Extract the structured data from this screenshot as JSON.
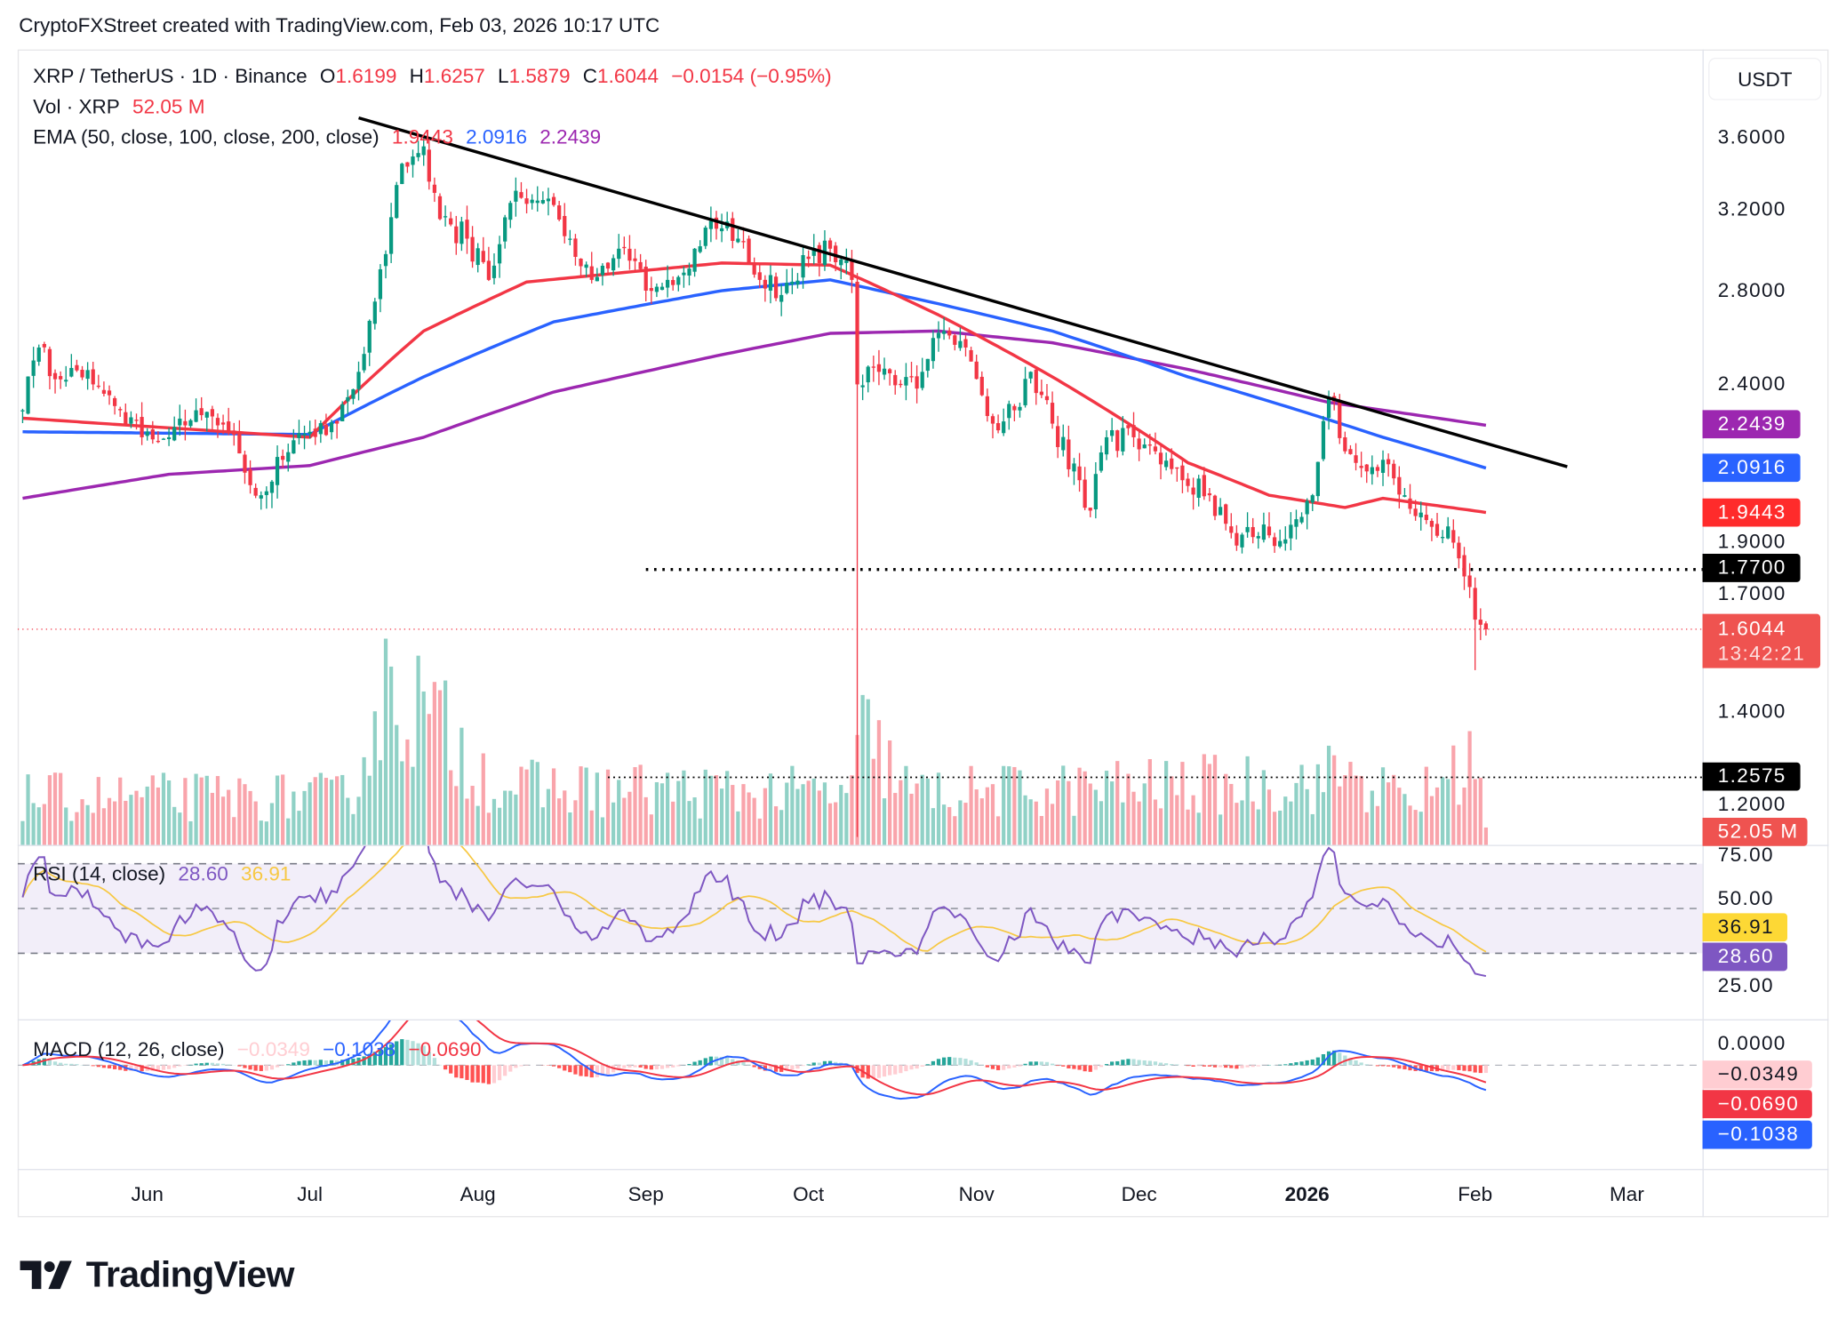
{
  "header": {
    "title": "CryptoFXStreet created with TradingView.com, Feb 03, 2026 10:17 UTC"
  },
  "legend": {
    "symbol": "XRP / TetherUS · 1D · Binance",
    "o_label": "O",
    "o": "1.6199",
    "h_label": "H",
    "h": "1.6257",
    "l_label": "L",
    "l": "1.5879",
    "c_label": "C",
    "c": "1.6044",
    "change": "−0.0154 (−0.95%)",
    "vol_label": "Vol · XRP",
    "vol": "52.05 M",
    "ema_label": "EMA (50, close, 100, close, 200, close)",
    "ema50": "1.9443",
    "ema100": "2.0916",
    "ema200": "2.2439",
    "rsi_label": "RSI (14, close)",
    "rsi": "28.60",
    "rsi_ma": "36.91",
    "macd_label": "MACD (12, 26, close)",
    "macd_hist": "−0.0349",
    "macd_line": "−0.1038",
    "macd_signal": "−0.0690"
  },
  "price_axis": {
    "currency": "USDT",
    "ticks": [
      "3.6000",
      "3.2000",
      "2.8000",
      "2.4000",
      "1.9000",
      "1.7000",
      "1.4000",
      "1.2000"
    ],
    "tick_values": [
      3.6,
      3.2,
      2.8,
      2.4,
      1.9,
      1.7,
      1.4,
      1.2
    ],
    "badges": {
      "ema200": "2.2439",
      "ema100": "2.0916",
      "ema50": "1.9443",
      "support": "1.7700",
      "last": "1.6044",
      "countdown": "13:42:21",
      "low_level": "1.2575",
      "volume": "52.05 M"
    }
  },
  "rsi_axis": {
    "ticks": [
      "75.00",
      "50.00",
      "25.00"
    ],
    "badges": {
      "ma": "36.91",
      "rsi": "28.60"
    }
  },
  "macd_axis": {
    "ticks": [
      "0.0000"
    ],
    "badges": {
      "hist": "−0.0349",
      "signal": "−0.0690",
      "macd": "−0.1038"
    }
  },
  "x_axis": {
    "labels": [
      {
        "t": "Jun",
        "d": "2025-06-01"
      },
      {
        "t": "Jul",
        "d": "2025-07-01"
      },
      {
        "t": "Aug",
        "d": "2025-08-01"
      },
      {
        "t": "Sep",
        "d": "2025-09-01"
      },
      {
        "t": "Oct",
        "d": "2025-10-01"
      },
      {
        "t": "Nov",
        "d": "2025-11-01"
      },
      {
        "t": "Dec",
        "d": "2025-12-01"
      },
      {
        "t": "2026",
        "d": "2026-01-01",
        "bold": true
      },
      {
        "t": "Feb",
        "d": "2026-02-01"
      },
      {
        "t": "Mar",
        "d": "2026-03-01"
      }
    ]
  },
  "footer": {
    "brand": "TradingView"
  },
  "colors": {
    "up": "#089981",
    "down": "#f23645",
    "ema50": "#f23645",
    "ema100": "#2962ff",
    "ema200": "#9c27b0",
    "rsi": "#7e57c2",
    "rsi_ma": "#f7c843"
  },
  "chart_data": {
    "type": "candlestick",
    "title": "XRP / TetherUS · 1D · Binance",
    "scale": "log",
    "ylim": [
      1.1,
      3.8
    ],
    "close_keypoints": [
      [
        "2025-05-09",
        2.3
      ],
      [
        "2025-05-12",
        2.55
      ],
      [
        "2025-05-16",
        2.42
      ],
      [
        "2025-05-22",
        2.4
      ],
      [
        "2025-05-27",
        2.3
      ],
      [
        "2025-05-31",
        2.2
      ],
      [
        "2025-06-05",
        2.2
      ],
      [
        "2025-06-10",
        2.3
      ],
      [
        "2025-06-16",
        2.22
      ],
      [
        "2025-06-22",
        2.0
      ],
      [
        "2025-06-26",
        2.12
      ],
      [
        "2025-07-01",
        2.22
      ],
      [
        "2025-07-06",
        2.25
      ],
      [
        "2025-07-10",
        2.45
      ],
      [
        "2025-07-14",
        2.9
      ],
      [
        "2025-07-18",
        3.45
      ],
      [
        "2025-07-22",
        3.55
      ],
      [
        "2025-07-25",
        3.15
      ],
      [
        "2025-07-30",
        3.05
      ],
      [
        "2025-08-03",
        2.85
      ],
      [
        "2025-08-08",
        3.3
      ],
      [
        "2025-08-13",
        3.25
      ],
      [
        "2025-08-18",
        3.05
      ],
      [
        "2025-08-22",
        2.85
      ],
      [
        "2025-08-27",
        3.0
      ],
      [
        "2025-09-01",
        2.8
      ],
      [
        "2025-09-05",
        2.85
      ],
      [
        "2025-09-10",
        3.0
      ],
      [
        "2025-09-14",
        3.1
      ],
      [
        "2025-09-18",
        3.05
      ],
      [
        "2025-09-22",
        2.85
      ],
      [
        "2025-09-26",
        2.78
      ],
      [
        "2025-10-01",
        2.95
      ],
      [
        "2025-10-05",
        3.0
      ],
      [
        "2025-10-09",
        2.85
      ],
      [
        "2025-10-10",
        2.4
      ],
      [
        "2025-10-14",
        2.45
      ],
      [
        "2025-10-18",
        2.4
      ],
      [
        "2025-10-22",
        2.45
      ],
      [
        "2025-10-26",
        2.62
      ],
      [
        "2025-10-30",
        2.55
      ],
      [
        "2025-11-04",
        2.25
      ],
      [
        "2025-11-08",
        2.3
      ],
      [
        "2025-11-11",
        2.45
      ],
      [
        "2025-11-15",
        2.25
      ],
      [
        "2025-11-20",
        2.05
      ],
      [
        "2025-11-22",
        1.95
      ],
      [
        "2025-11-25",
        2.2
      ],
      [
        "2025-11-30",
        2.2
      ],
      [
        "2025-12-04",
        2.15
      ],
      [
        "2025-12-09",
        2.05
      ],
      [
        "2025-12-14",
        2.0
      ],
      [
        "2025-12-18",
        1.88
      ],
      [
        "2025-12-23",
        1.87
      ],
      [
        "2025-12-28",
        1.86
      ],
      [
        "2026-01-02",
        2.0
      ],
      [
        "2026-01-05",
        2.35
      ],
      [
        "2026-01-08",
        2.15
      ],
      [
        "2026-01-12",
        2.08
      ],
      [
        "2026-01-15",
        2.12
      ],
      [
        "2026-01-19",
        2.0
      ],
      [
        "2026-01-23",
        1.92
      ],
      [
        "2026-01-27",
        1.9
      ],
      [
        "2026-01-30",
        1.75
      ],
      [
        "2026-02-01",
        1.63
      ],
      [
        "2026-02-03",
        1.6044
      ]
    ],
    "special_lows": [
      [
        "2025-10-10",
        1.14
      ],
      [
        "2026-02-01",
        1.5
      ]
    ],
    "last_candle": {
      "o": 1.6199,
      "h": 1.6257,
      "l": 1.5879,
      "c": 1.6044
    },
    "ema50": [
      [
        "2025-05-09",
        2.27
      ],
      [
        "2025-07-01",
        2.2
      ],
      [
        "2025-07-22",
        2.62
      ],
      [
        "2025-08-10",
        2.84
      ],
      [
        "2025-09-15",
        2.93
      ],
      [
        "2025-10-05",
        2.92
      ],
      [
        "2025-10-25",
        2.69
      ],
      [
        "2025-11-15",
        2.43
      ],
      [
        "2025-12-10",
        2.11
      ],
      [
        "2025-12-25",
        2.0
      ],
      [
        "2026-01-08",
        1.96
      ],
      [
        "2026-01-15",
        1.99
      ],
      [
        "2026-02-03",
        1.9443
      ]
    ],
    "ema100": [
      [
        "2025-05-09",
        2.22
      ],
      [
        "2025-07-01",
        2.21
      ],
      [
        "2025-07-22",
        2.43
      ],
      [
        "2025-08-15",
        2.66
      ],
      [
        "2025-09-15",
        2.8
      ],
      [
        "2025-10-05",
        2.85
      ],
      [
        "2025-10-25",
        2.74
      ],
      [
        "2025-11-15",
        2.62
      ],
      [
        "2025-12-10",
        2.43
      ],
      [
        "2026-01-01",
        2.29
      ],
      [
        "2026-01-15",
        2.2
      ],
      [
        "2026-02-03",
        2.0916
      ]
    ],
    "ema200": [
      [
        "2025-05-09",
        1.99
      ],
      [
        "2025-06-05",
        2.07
      ],
      [
        "2025-07-01",
        2.1
      ],
      [
        "2025-07-22",
        2.2
      ],
      [
        "2025-08-15",
        2.37
      ],
      [
        "2025-09-15",
        2.52
      ],
      [
        "2025-10-05",
        2.61
      ],
      [
        "2025-10-25",
        2.62
      ],
      [
        "2025-11-15",
        2.57
      ],
      [
        "2025-12-10",
        2.46
      ],
      [
        "2026-01-05",
        2.33
      ],
      [
        "2026-02-03",
        2.2439
      ]
    ],
    "volume_keypoints_m": [
      [
        "2025-05-09",
        150
      ],
      [
        "2025-07-08",
        150
      ],
      [
        "2025-07-16",
        520
      ],
      [
        "2025-07-24",
        380
      ],
      [
        "2025-08-05",
        180
      ],
      [
        "2025-10-09",
        160
      ],
      [
        "2025-10-11",
        350
      ],
      [
        "2025-10-20",
        160
      ],
      [
        "2026-01-04",
        200
      ],
      [
        "2026-01-07",
        240
      ],
      [
        "2026-01-20",
        130
      ],
      [
        "2026-02-01",
        280
      ],
      [
        "2026-02-03",
        52.05
      ]
    ],
    "trendline": [
      [
        "2025-07-10",
        3.72
      ],
      [
        "2026-02-18",
        2.096
      ]
    ],
    "horizontal_levels": [
      {
        "price": 1.77,
        "from": "2025-09-01",
        "style": "dotted-bold"
      },
      {
        "price": 1.2575,
        "from": "2025-08-25",
        "style": "dotted"
      }
    ],
    "rsi": {
      "period": 14,
      "last": 28.6,
      "ma_last": 36.91,
      "levels": [
        70,
        50,
        30
      ]
    },
    "macd": {
      "fast": 12,
      "slow": 26,
      "hist_last": -0.0349,
      "macd_last": -0.1038,
      "signal_last": -0.069
    }
  }
}
